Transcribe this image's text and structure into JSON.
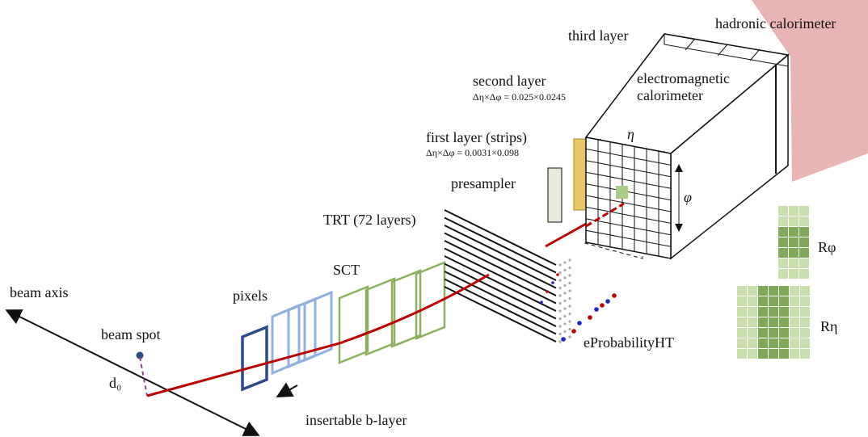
{
  "labels": {
    "hadronic_calorimeter": "hadronic calorimeter",
    "third_layer": "third layer",
    "electromagnetic_calorimeter": [
      "electromagnetic",
      "calorimeter"
    ],
    "second_layer": "second layer",
    "second_layer_granularity": "Δη×Δφ = 0.025×0.0245",
    "first_layer": "first layer (strips)",
    "first_layer_granularity": "Δη×Δφ = 0.0031×0.098",
    "presampler": "presampler",
    "eta": "η",
    "phi": "φ",
    "trt": "TRT (72 layers)",
    "sct": "SCT",
    "pixels": "pixels",
    "beam_axis": "beam axis",
    "beam_spot": "beam spot",
    "d0": "d₀",
    "insertable_b_layer": "insertable b-layer",
    "eprobability": "eProbabilityHT",
    "r_phi": "Rφ",
    "r_eta": "Rη"
  }
}
